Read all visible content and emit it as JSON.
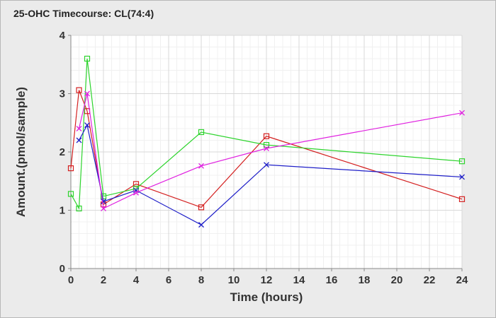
{
  "chart_data": {
    "type": "line",
    "title": "25-OHC Timecourse: CL(74:4)",
    "xlabel": "Time (hours)",
    "ylabel": "Amount.(pmol/sample)",
    "xlim": [
      0,
      24
    ],
    "ylim": [
      0,
      4
    ],
    "xticks": [
      0,
      2,
      4,
      6,
      8,
      10,
      12,
      14,
      16,
      18,
      20,
      22,
      24
    ],
    "yticks": [
      0,
      1,
      2,
      3,
      4
    ],
    "grid": true,
    "series": [
      {
        "color": "#d42020",
        "marker": "square",
        "x": [
          0,
          0.5,
          1,
          2,
          4,
          8,
          12,
          24
        ],
        "y": [
          1.72,
          3.06,
          2.7,
          1.1,
          1.45,
          1.05,
          2.27,
          1.19
        ]
      },
      {
        "color": "#2dd42d",
        "marker": "square",
        "x": [
          0,
          0.5,
          1,
          2,
          4,
          8,
          12,
          24
        ],
        "y": [
          1.28,
          1.03,
          3.6,
          1.24,
          1.37,
          2.34,
          2.12,
          1.84
        ]
      },
      {
        "color": "#1e1ec8",
        "marker": "x",
        "x": [
          0.5,
          1,
          2,
          4,
          8,
          12,
          24
        ],
        "y": [
          2.2,
          2.46,
          1.15,
          1.34,
          0.75,
          1.78,
          1.57
        ]
      },
      {
        "color": "#e020e0",
        "marker": "x",
        "x": [
          0.5,
          1,
          2,
          4,
          8,
          12,
          24
        ],
        "y": [
          2.4,
          3.0,
          1.03,
          1.3,
          1.76,
          2.06,
          2.67
        ]
      }
    ]
  }
}
